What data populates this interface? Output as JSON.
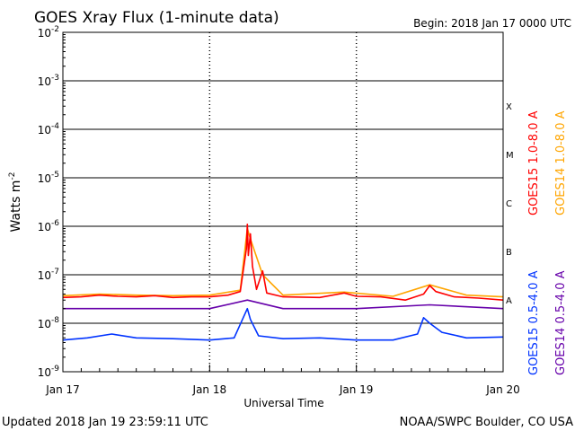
{
  "chart_data": {
    "type": "line",
    "title": "GOES Xray Flux (1-minute data)",
    "begin_label": "Begin:  2018 Jan 17 0000 UTC",
    "xlabel": "Universal Time",
    "ylabel": "Watts m",
    "ylabel_superscript": "-2",
    "x_ticks": [
      "Jan 17",
      "Jan 18",
      "Jan 19",
      "Jan 20"
    ],
    "x_range": [
      "2018-01-17 00:00",
      "2018-01-20 00:00"
    ],
    "y_scale": "log",
    "ylim": [
      1e-09,
      0.01
    ],
    "y_ticks": [
      {
        "value": 1e-09,
        "base": "10",
        "exp": "-9"
      },
      {
        "value": 1e-08,
        "base": "10",
        "exp": "-8"
      },
      {
        "value": 1e-07,
        "base": "10",
        "exp": "-7"
      },
      {
        "value": 1e-06,
        "base": "10",
        "exp": "-6"
      },
      {
        "value": 1e-05,
        "base": "10",
        "exp": "-5"
      },
      {
        "value": 0.0001,
        "base": "10",
        "exp": "-4"
      },
      {
        "value": 0.001,
        "base": "10",
        "exp": "-3"
      },
      {
        "value": 0.01,
        "base": "10",
        "exp": "-2"
      }
    ],
    "flare_classes": [
      {
        "label": "A",
        "y": 3e-08
      },
      {
        "label": "B",
        "y": 3e-07
      },
      {
        "label": "C",
        "y": 3e-06
      },
      {
        "label": "M",
        "y": 3e-05
      },
      {
        "label": "X",
        "y": 0.0003
      }
    ],
    "grid_lines": [
      1e-08,
      1e-07,
      1e-06,
      1e-05,
      0.0001,
      0.001
    ],
    "series": [
      {
        "name": "GOES15 1.0-8.0 A",
        "color": "#ff0000",
        "points": [
          {
            "x": "2018-01-17 00:00",
            "y": 3.4e-08
          },
          {
            "x": "2018-01-17 03:00",
            "y": 3.5e-08
          },
          {
            "x": "2018-01-17 06:00",
            "y": 3.8e-08
          },
          {
            "x": "2018-01-17 09:00",
            "y": 3.6e-08
          },
          {
            "x": "2018-01-17 12:00",
            "y": 3.5e-08
          },
          {
            "x": "2018-01-17 15:00",
            "y": 3.7e-08
          },
          {
            "x": "2018-01-17 18:00",
            "y": 3.4e-08
          },
          {
            "x": "2018-01-17 21:00",
            "y": 3.5e-08
          },
          {
            "x": "2018-01-18 00:00",
            "y": 3.5e-08
          },
          {
            "x": "2018-01-18 03:00",
            "y": 3.8e-08
          },
          {
            "x": "2018-01-18 05:00",
            "y": 4.5e-08
          },
          {
            "x": "2018-01-18 06:00",
            "y": 3.4e-07
          },
          {
            "x": "2018-01-18 06:10",
            "y": 1.1e-06
          },
          {
            "x": "2018-01-18 06:20",
            "y": 2.5e-07
          },
          {
            "x": "2018-01-18 06:40",
            "y": 7e-07
          },
          {
            "x": "2018-01-18 07:00",
            "y": 1.5e-07
          },
          {
            "x": "2018-01-18 07:40",
            "y": 5e-08
          },
          {
            "x": "2018-01-18 08:40",
            "y": 1.2e-07
          },
          {
            "x": "2018-01-18 09:20",
            "y": 4.2e-08
          },
          {
            "x": "2018-01-18 12:00",
            "y": 3.5e-08
          },
          {
            "x": "2018-01-18 18:00",
            "y": 3.4e-08
          },
          {
            "x": "2018-01-18 22:00",
            "y": 4.2e-08
          },
          {
            "x": "2018-01-19 00:00",
            "y": 3.6e-08
          },
          {
            "x": "2018-01-19 04:00",
            "y": 3.5e-08
          },
          {
            "x": "2018-01-19 08:00",
            "y": 3e-08
          },
          {
            "x": "2018-01-19 11:00",
            "y": 4e-08
          },
          {
            "x": "2018-01-19 12:00",
            "y": 6e-08
          },
          {
            "x": "2018-01-19 13:00",
            "y": 4.5e-08
          },
          {
            "x": "2018-01-19 16:00",
            "y": 3.5e-08
          },
          {
            "x": "2018-01-19 20:00",
            "y": 3.3e-08
          },
          {
            "x": "2018-01-20 00:00",
            "y": 3e-08
          }
        ]
      },
      {
        "name": "GOES14 1.0-8.0 A",
        "color": "#ffa500",
        "points": [
          {
            "x": "2018-01-17 00:00",
            "y": 3.7e-08
          },
          {
            "x": "2018-01-17 06:00",
            "y": 4e-08
          },
          {
            "x": "2018-01-17 12:00",
            "y": 3.8e-08
          },
          {
            "x": "2018-01-17 18:00",
            "y": 3.7e-08
          },
          {
            "x": "2018-01-18 00:00",
            "y": 3.8e-08
          },
          {
            "x": "2018-01-18 05:00",
            "y": 4.8e-08
          },
          {
            "x": "2018-01-18 06:10",
            "y": 9e-07
          },
          {
            "x": "2018-01-18 06:40",
            "y": 5.5e-07
          },
          {
            "x": "2018-01-18 08:40",
            "y": 1e-07
          },
          {
            "x": "2018-01-18 12:00",
            "y": 3.8e-08
          },
          {
            "x": "2018-01-18 22:00",
            "y": 4.4e-08
          },
          {
            "x": "2018-01-19 06:00",
            "y": 3.6e-08
          },
          {
            "x": "2018-01-19 12:00",
            "y": 6.2e-08
          },
          {
            "x": "2018-01-19 18:00",
            "y": 3.8e-08
          },
          {
            "x": "2018-01-20 00:00",
            "y": 3.5e-08
          }
        ]
      },
      {
        "name": "GOES15 0.5-4.0 A",
        "color": "#0033ff",
        "points": [
          {
            "x": "2018-01-17 00:00",
            "y": 4.5e-09
          },
          {
            "x": "2018-01-17 04:00",
            "y": 5e-09
          },
          {
            "x": "2018-01-17 08:00",
            "y": 6e-09
          },
          {
            "x": "2018-01-17 12:00",
            "y": 5e-09
          },
          {
            "x": "2018-01-17 18:00",
            "y": 4.8e-09
          },
          {
            "x": "2018-01-18 00:00",
            "y": 4.5e-09
          },
          {
            "x": "2018-01-18 04:00",
            "y": 5e-09
          },
          {
            "x": "2018-01-18 06:10",
            "y": 2e-08
          },
          {
            "x": "2018-01-18 06:40",
            "y": 1.2e-08
          },
          {
            "x": "2018-01-18 08:00",
            "y": 5.5e-09
          },
          {
            "x": "2018-01-18 12:00",
            "y": 4.8e-09
          },
          {
            "x": "2018-01-18 18:00",
            "y": 5e-09
          },
          {
            "x": "2018-01-19 00:00",
            "y": 4.5e-09
          },
          {
            "x": "2018-01-19 06:00",
            "y": 4.5e-09
          },
          {
            "x": "2018-01-19 10:00",
            "y": 6e-09
          },
          {
            "x": "2018-01-19 11:00",
            "y": 1.3e-08
          },
          {
            "x": "2018-01-19 12:00",
            "y": 1e-08
          },
          {
            "x": "2018-01-19 14:00",
            "y": 6.5e-09
          },
          {
            "x": "2018-01-19 18:00",
            "y": 5e-09
          },
          {
            "x": "2018-01-20 00:00",
            "y": 5.2e-09
          }
        ]
      },
      {
        "name": "GOES14 0.5-4.0 A",
        "color": "#6600aa",
        "points": [
          {
            "x": "2018-01-17 00:00",
            "y": 2e-08
          },
          {
            "x": "2018-01-17 12:00",
            "y": 2e-08
          },
          {
            "x": "2018-01-18 00:00",
            "y": 2e-08
          },
          {
            "x": "2018-01-18 06:10",
            "y": 3e-08
          },
          {
            "x": "2018-01-18 12:00",
            "y": 2e-08
          },
          {
            "x": "2018-01-19 00:00",
            "y": 2e-08
          },
          {
            "x": "2018-01-19 12:00",
            "y": 2.4e-08
          },
          {
            "x": "2018-01-20 00:00",
            "y": 2e-08
          }
        ]
      }
    ]
  },
  "footer": {
    "updated": "Updated 2018 Jan 19 23:59:11 UTC",
    "credit": "NOAA/SWPC Boulder, CO USA"
  }
}
